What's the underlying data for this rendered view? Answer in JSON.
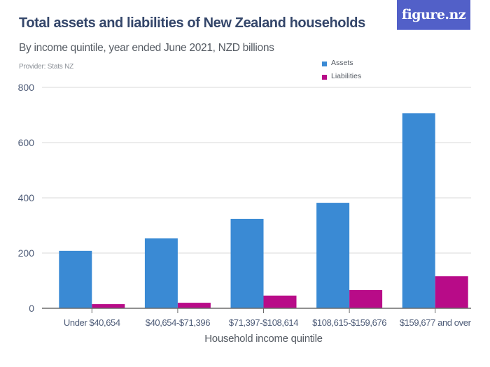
{
  "header": {
    "title": "Total assets and liabilities of New Zealand households",
    "subtitle": "By income quintile, year ended June 2021, NZD billions",
    "provider": "Provider: Stats NZ"
  },
  "logo": {
    "text": "figure.nz",
    "background": "#5260c8"
  },
  "chart_data": {
    "type": "bar",
    "title": "Total assets and liabilities of New Zealand households",
    "subtitle": "By income quintile, year ended June 2021, NZD billions",
    "xlabel": "Household income quintile",
    "ylabel": "",
    "ylim": [
      0,
      800
    ],
    "yticks": [
      0,
      200,
      400,
      600,
      800
    ],
    "grid": true,
    "legend_position": "top-right",
    "categories": [
      "Under $40,654",
      "$40,654-$71,396",
      "$71,397-$108,614",
      "$108,615-$159,676",
      "$159,677 and over"
    ],
    "series": [
      {
        "name": "Assets",
        "color": "#3a8ad4",
        "values": [
          208,
          253,
          324,
          382,
          706
        ]
      },
      {
        "name": "Liabilities",
        "color": "#b80b88",
        "values": [
          15,
          20,
          46,
          66,
          116
        ]
      }
    ]
  }
}
